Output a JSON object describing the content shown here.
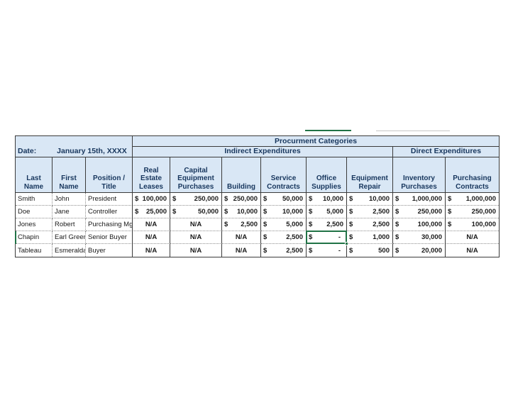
{
  "colors": {
    "selection_green": "#217346",
    "header_fill": "#d9e7f5",
    "header_text": "#17365d"
  },
  "date_row": {
    "label": "Date:",
    "value": "January 15th, XXXX"
  },
  "banners": {
    "procurement": "Procurment Categories",
    "indirect": "Indirect Expenditures",
    "direct": "Direct Expenditures"
  },
  "columns": [
    {
      "label": "Last Name"
    },
    {
      "label": "First Name"
    },
    {
      "label": "Position / Title"
    },
    {
      "label": "Real Estate Leases"
    },
    {
      "label": "Capital Equipment Purchases"
    },
    {
      "label": "Building"
    },
    {
      "label": "Service Contracts"
    },
    {
      "label": "Office Supplies"
    },
    {
      "label": "Equipment Repair"
    },
    {
      "label": "Inventory Purchases"
    },
    {
      "label": "Purchasing Contracts"
    }
  ],
  "rows": [
    {
      "cells": [
        {
          "v": "Smith"
        },
        {
          "v": "John"
        },
        {
          "v": "President"
        },
        {
          "d": "$",
          "v": "100,000"
        },
        {
          "d": "$",
          "v": "250,000"
        },
        {
          "d": "$",
          "v": "250,000"
        },
        {
          "d": "$",
          "v": "50,000"
        },
        {
          "d": "$",
          "v": "10,000"
        },
        {
          "d": "$",
          "v": "10,000"
        },
        {
          "d": "$",
          "v": "1,000,000"
        },
        {
          "d": "$",
          "v": "1,000,000"
        }
      ]
    },
    {
      "cells": [
        {
          "v": "Doe"
        },
        {
          "v": "Jane"
        },
        {
          "v": "Controller"
        },
        {
          "d": "$",
          "v": "25,000"
        },
        {
          "d": "$",
          "v": "50,000"
        },
        {
          "d": "$",
          "v": "10,000"
        },
        {
          "d": "$",
          "v": "10,000"
        },
        {
          "d": "$",
          "v": "5,000"
        },
        {
          "d": "$",
          "v": "2,500"
        },
        {
          "d": "$",
          "v": "250,000"
        },
        {
          "d": "$",
          "v": "250,000"
        }
      ]
    },
    {
      "cells": [
        {
          "v": "Jones"
        },
        {
          "v": "Robert"
        },
        {
          "v": "Purchasing Mgr"
        },
        {
          "v": "N/A"
        },
        {
          "v": "N/A"
        },
        {
          "d": "$",
          "v": "2,500"
        },
        {
          "d": "$",
          "v": "5,000"
        },
        {
          "d": "$",
          "v": "2,500"
        },
        {
          "d": "$",
          "v": "2,500"
        },
        {
          "d": "$",
          "v": "100,000"
        },
        {
          "d": "$",
          "v": "100,000"
        }
      ]
    },
    {
      "cells": [
        {
          "v": "Chapin"
        },
        {
          "v": "Earl Green"
        },
        {
          "v": "Senior Buyer"
        },
        {
          "v": "N/A"
        },
        {
          "v": "N/A"
        },
        {
          "v": "N/A"
        },
        {
          "d": "$",
          "v": "2,500"
        },
        {
          "d": "$",
          "v": "-"
        },
        {
          "d": "$",
          "v": "1,000"
        },
        {
          "d": "$",
          "v": "30,000"
        },
        {
          "v": "N/A"
        }
      ]
    },
    {
      "cells": [
        {
          "v": "Tableau"
        },
        {
          "v": "Esmeralda"
        },
        {
          "v": "Buyer"
        },
        {
          "v": "N/A"
        },
        {
          "v": "N/A"
        },
        {
          "v": "N/A"
        },
        {
          "d": "$",
          "v": "2,500"
        },
        {
          "d": "$",
          "v": "-"
        },
        {
          "d": "$",
          "v": "500"
        },
        {
          "d": "$",
          "v": "20,000"
        },
        {
          "v": "N/A"
        }
      ]
    }
  ],
  "selection": {
    "row": "Chapin",
    "column": "Office Supplies",
    "value": "$ -"
  }
}
